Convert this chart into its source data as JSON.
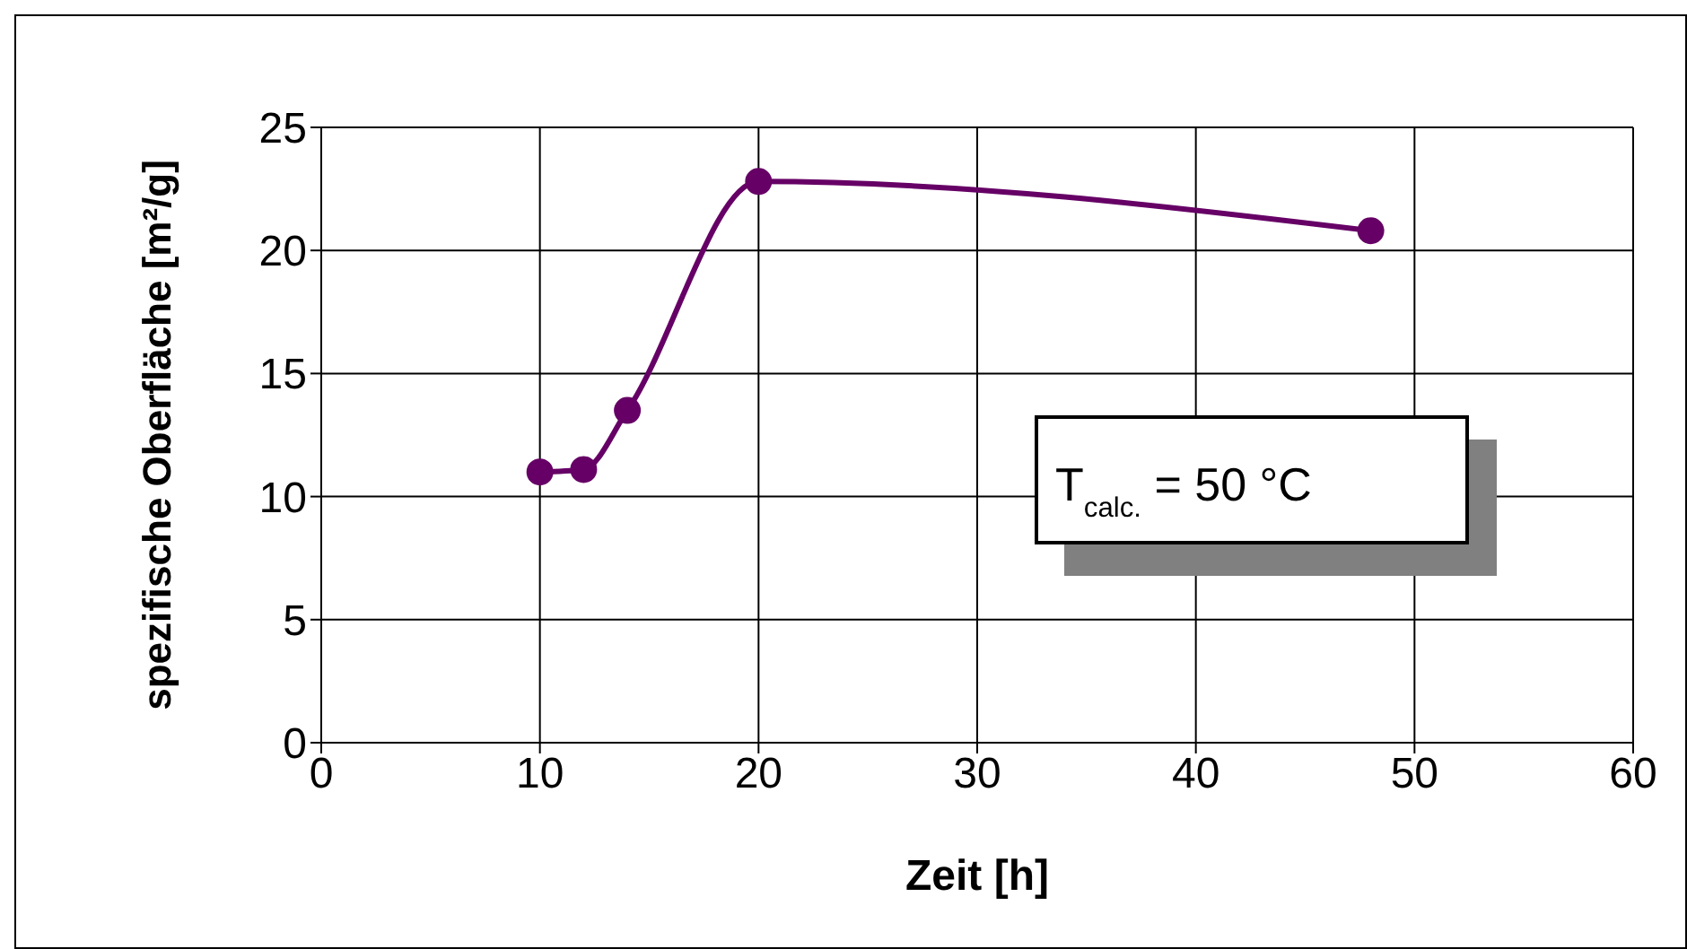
{
  "chart_data": {
    "type": "line",
    "xlabel": "Zeit [h]",
    "ylabel": "spezifische Oberfläche [m²/g]",
    "x": [
      10,
      12,
      14,
      20,
      48
    ],
    "series": [
      {
        "color": "#660066",
        "values": [
          11.0,
          11.1,
          13.5,
          22.8,
          20.8
        ]
      }
    ],
    "xlim": [
      0,
      60
    ],
    "xticks": [
      0,
      10,
      20,
      30,
      40,
      50,
      60
    ],
    "ylim": [
      0,
      25
    ],
    "yticks": [
      0,
      5,
      10,
      15,
      20,
      25
    ],
    "grid": true,
    "marker": "circle",
    "line_style": "solid",
    "legend": false,
    "annotations": [
      "T$_{calc.}$ = 50 °C"
    ]
  }
}
